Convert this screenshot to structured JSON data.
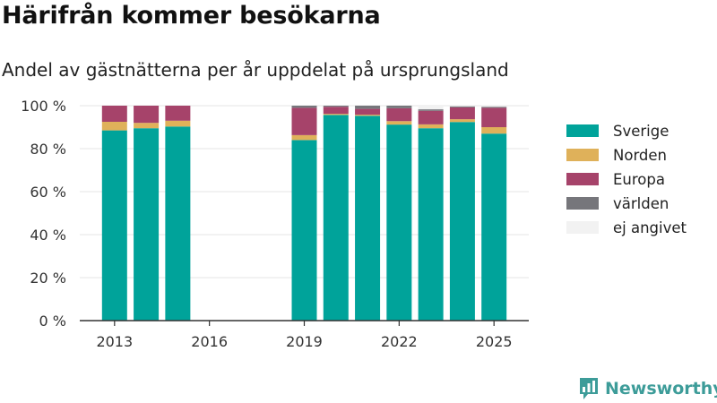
{
  "header": {
    "title": "Härifrån kommer besökarna",
    "subtitle": "Andel av gästnätterna per år uppdelat på ursprungsland"
  },
  "brand": {
    "name": "Newsworthy",
    "color": "#3d9c99"
  },
  "chart_data": {
    "type": "bar",
    "stacked": true,
    "title": "Härifrån kommer besökarna",
    "subtitle": "Andel av gästnätterna per år uppdelat på ursprungsland",
    "xlabel": "",
    "ylabel": "",
    "x": [
      2013,
      2014,
      2015,
      2019,
      2020,
      2021,
      2022,
      2023,
      2024,
      2025
    ],
    "xlim": [
      2011.9,
      2026.1
    ],
    "x_ticks": [
      2013,
      2016,
      2019,
      2022,
      2025
    ],
    "x_tick_labels": [
      "2013",
      "2016",
      "2019",
      "2022",
      "2025"
    ],
    "ylim": [
      0,
      100
    ],
    "y_ticks": [
      0,
      20,
      40,
      60,
      80,
      100
    ],
    "y_tick_labels": [
      "0 %",
      "20 %",
      "40 %",
      "60 %",
      "80 %",
      "100 %"
    ],
    "grid": true,
    "legend_position": "right",
    "series": [
      {
        "name": "Sverige",
        "color": "#00a39a",
        "values": [
          88.5,
          89.5,
          90.3,
          84.0,
          95.7,
          95.3,
          91.2,
          89.5,
          92.4,
          87.0
        ]
      },
      {
        "name": "Norden",
        "color": "#dfb15a",
        "values": [
          4.0,
          2.5,
          2.7,
          2.3,
          0.5,
          0.5,
          1.6,
          1.8,
          1.3,
          3.0
        ]
      },
      {
        "name": "Europa",
        "color": "#a6436a",
        "values": [
          7.5,
          8.0,
          7.0,
          12.7,
          3.3,
          2.7,
          6.0,
          6.3,
          5.5,
          9.0
        ]
      },
      {
        "name": "världen",
        "color": "#76767b",
        "values": [
          0.0,
          0.0,
          0.0,
          1.0,
          0.5,
          1.5,
          1.2,
          0.7,
          0.5,
          0.5
        ]
      },
      {
        "name": "ej angivet",
        "color": "#f2f2f2",
        "values": [
          0.0,
          0.0,
          0.0,
          0.0,
          0.0,
          0.0,
          0.0,
          1.7,
          0.3,
          0.5
        ]
      }
    ]
  }
}
